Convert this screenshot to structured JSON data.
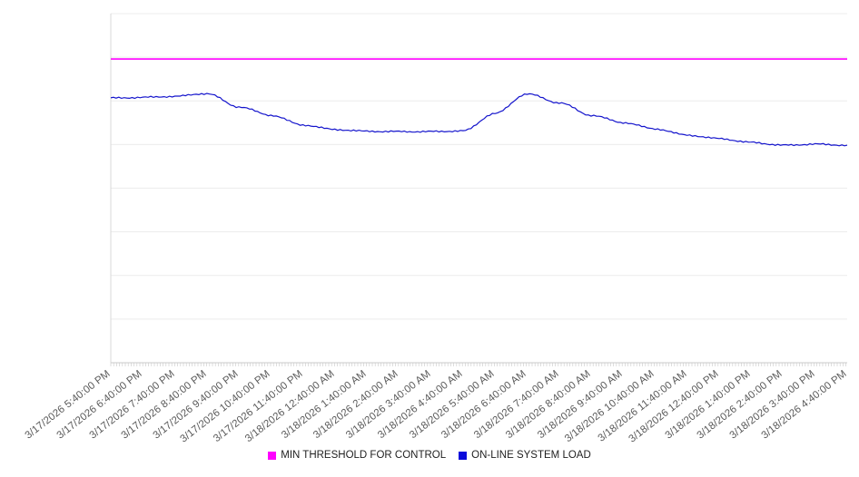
{
  "chart_data": {
    "type": "line",
    "title": "",
    "xlabel": "",
    "ylabel": "",
    "ylim": [
      0,
      100
    ],
    "grid": "horizontal",
    "gridline_values": [
      0,
      12.5,
      25,
      37.5,
      50,
      62.5,
      75,
      87.5,
      100
    ],
    "legend_position": "bottom-center",
    "x_labels": [
      "3/17/2026 5:40:00 PM",
      "3/17/2026 6:40:00 PM",
      "3/17/2026 7:40:00 PM",
      "3/17/2026 8:40:00 PM",
      "3/17/2026 9:40:00 PM",
      "3/17/2026 10:40:00 PM",
      "3/17/2026 11:40:00 PM",
      "3/18/2026 12:40:00 AM",
      "3/18/2026 1:40:00 AM",
      "3/18/2026 2:40:00 AM",
      "3/18/2026 3:40:00 AM",
      "3/18/2026 4:40:00 AM",
      "3/18/2026 5:40:00 AM",
      "3/18/2026 6:40:00 AM",
      "3/18/2026 7:40:00 AM",
      "3/18/2026 8:40:00 AM",
      "3/18/2026 9:40:00 AM",
      "3/18/2026 10:40:00 AM",
      "3/18/2026 11:40:00 AM",
      "3/18/2026 12:40:00 PM",
      "3/18/2026 1:40:00 PM",
      "3/18/2026 2:40:00 PM",
      "3/18/2026 3:40:00 PM",
      "3/18/2026 4:40:00 PM"
    ],
    "series": [
      {
        "name": "MIN THRESHOLD FOR CONTROL",
        "type": "constant-line",
        "color": "#ff00ff",
        "constant": 87
      },
      {
        "name": "ON-LINE SYSTEM LOAD",
        "type": "line",
        "color": "#1414cc",
        "values": [
          75.8,
          76.0,
          76.3,
          77.1,
          73.3,
          70.9,
          68.1,
          66.8,
          66.3,
          66.2,
          66.2,
          66.4,
          71.4,
          77.0,
          74.5,
          70.9,
          68.8,
          67.0,
          65.2,
          64.2,
          63.1,
          62.3,
          62.6,
          62.3
        ]
      }
    ]
  },
  "layout_note": "time-series load chart, no y-axis tick labels visible"
}
